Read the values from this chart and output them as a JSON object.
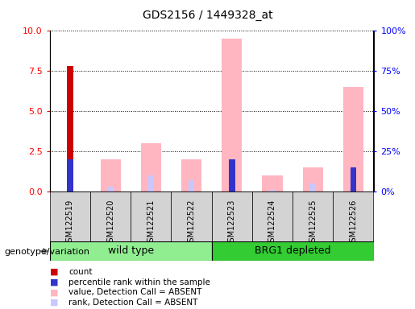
{
  "title": "GDS2156 / 1449328_at",
  "samples": [
    "GSM122519",
    "GSM122520",
    "GSM122521",
    "GSM122522",
    "GSM122523",
    "GSM122524",
    "GSM122525",
    "GSM122526"
  ],
  "count": [
    7.8,
    0,
    0,
    0,
    0,
    0,
    0,
    0
  ],
  "percentile_rank": [
    2.0,
    0,
    0,
    0,
    2.0,
    0,
    0,
    1.5
  ],
  "value_absent": [
    0,
    2.0,
    3.0,
    2.0,
    9.5,
    1.0,
    1.5,
    6.5
  ],
  "rank_absent": [
    0,
    0.3,
    1.0,
    0.7,
    2.0,
    0.1,
    0.5,
    1.5
  ],
  "ylim_left": [
    0,
    10
  ],
  "ylim_right": [
    0,
    100
  ],
  "yticks_left": [
    0,
    2.5,
    5.0,
    7.5,
    10
  ],
  "yticks_right": [
    0,
    25,
    50,
    75,
    100
  ],
  "color_count": "#cc0000",
  "color_rank": "#3333cc",
  "color_value_absent": "#ffb6c1",
  "color_rank_absent": "#c8c8ff",
  "color_count_dark": "#cc0000",
  "group1_label": "wild type",
  "group2_label": "BRG1 depleted",
  "group1_color": "#90ee90",
  "group2_color": "#33cc33",
  "group1_indices": [
    0,
    1,
    2,
    3
  ],
  "group2_indices": [
    4,
    5,
    6,
    7
  ],
  "genotype_label": "genotype/variation",
  "legend": [
    {
      "color": "#cc0000",
      "label": "count"
    },
    {
      "color": "#3333cc",
      "label": "percentile rank within the sample"
    },
    {
      "color": "#ffb6c1",
      "label": "value, Detection Call = ABSENT"
    },
    {
      "color": "#c8c8ff",
      "label": "rank, Detection Call = ABSENT"
    }
  ]
}
